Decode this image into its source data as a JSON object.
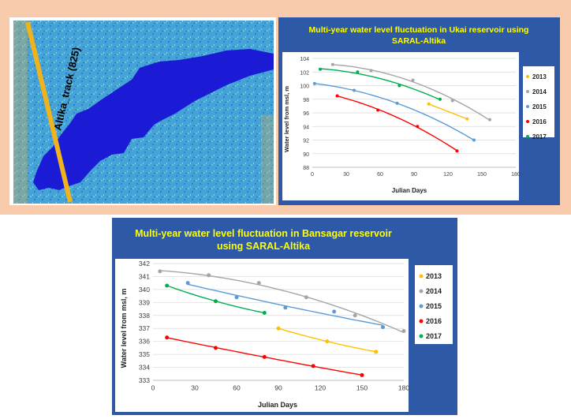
{
  "satellite": {
    "track_label": "Altika_track (825)",
    "colors": {
      "water": "#1b1bd6",
      "land": "#3e9bd6",
      "track": "#f0b21d"
    }
  },
  "chart_data": [
    {
      "id": "ukai",
      "type": "scatter",
      "title": "Multi-year water level fluctuation in Ukai reservoir using SARAL-Altika",
      "title_lines": [
        "Multi-year water level fluctuation in Ukai reservoir using",
        "SARAL-Altika"
      ],
      "xlabel": "Julian Days",
      "ylabel": "Water level from msl, m",
      "xlim": [
        0,
        180
      ],
      "ylim": [
        88,
        104
      ],
      "xticks": [
        0,
        30,
        60,
        90,
        120,
        150,
        180
      ],
      "yticks": [
        88,
        90,
        92,
        94,
        96,
        98,
        100,
        102,
        104
      ],
      "legend_position": "right",
      "series": [
        {
          "name": "2013",
          "color": "#ffc000",
          "x": [
            103,
            137
          ],
          "y": [
            97.3,
            95.1
          ]
        },
        {
          "name": "2014",
          "color": "#a5a5a5",
          "x": [
            18,
            52,
            89,
            124,
            157
          ],
          "y": [
            103.1,
            102.2,
            100.8,
            97.8,
            95.0
          ]
        },
        {
          "name": "2015",
          "color": "#5b9bd5",
          "x": [
            2,
            37,
            75,
            143
          ],
          "y": [
            100.3,
            99.3,
            97.4,
            92.0
          ]
        },
        {
          "name": "2016",
          "color": "#ff0000",
          "x": [
            22,
            58,
            93,
            128
          ],
          "y": [
            98.5,
            96.4,
            94.0,
            90.4
          ]
        },
        {
          "name": "2017",
          "color": "#00b050",
          "x": [
            7,
            40,
            77,
            113
          ],
          "y": [
            102.4,
            102.0,
            100.0,
            98.0
          ]
        }
      ]
    },
    {
      "id": "bansagar",
      "type": "scatter",
      "title": "Multi-year water level fluctuation in Bansagar reservoir using SARAL-Altika",
      "title_lines": [
        "Multi-year water level fluctuation in Bansagar reservoir",
        "using SARAL-Altika"
      ],
      "xlabel": "Julian Days",
      "ylabel": "Water level from msl, m",
      "xlim": [
        0,
        180
      ],
      "ylim": [
        333,
        342
      ],
      "xticks": [
        0,
        30,
        60,
        90,
        120,
        150,
        180
      ],
      "yticks": [
        333,
        334,
        335,
        336,
        337,
        338,
        339,
        340,
        341,
        342
      ],
      "legend_position": "right",
      "series": [
        {
          "name": "2013",
          "color": "#ffc000",
          "x": [
            90,
            125,
            160
          ],
          "y": [
            337.0,
            336.0,
            335.2
          ]
        },
        {
          "name": "2014",
          "color": "#a5a5a5",
          "x": [
            5,
            40,
            76,
            110,
            145,
            180
          ],
          "y": [
            341.4,
            341.1,
            340.5,
            339.4,
            338.0,
            336.8
          ]
        },
        {
          "name": "2015",
          "color": "#5b9bd5",
          "x": [
            25,
            60,
            95,
            130,
            165
          ],
          "y": [
            340.5,
            339.4,
            338.6,
            338.3,
            337.1
          ]
        },
        {
          "name": "2016",
          "color": "#ff0000",
          "x": [
            10,
            45,
            80,
            115,
            150
          ],
          "y": [
            336.3,
            335.5,
            334.8,
            334.1,
            333.4
          ]
        },
        {
          "name": "2017",
          "color": "#00b050",
          "x": [
            10,
            45,
            80
          ],
          "y": [
            340.3,
            339.1,
            338.2
          ]
        }
      ]
    }
  ]
}
